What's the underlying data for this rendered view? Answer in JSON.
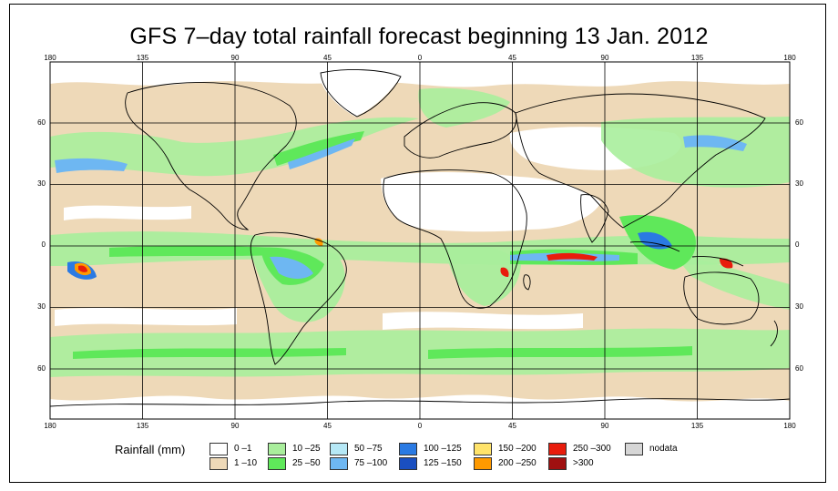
{
  "title": "GFS 7–day total rainfall forecast beginning 13 Jan. 2012",
  "axes": {
    "lon_labels": [
      "180",
      "135",
      "90",
      "45",
      "0",
      "45",
      "90",
      "135",
      "180"
    ],
    "lat_labels": [
      "60",
      "30",
      "0",
      "30",
      "60"
    ]
  },
  "colors": {
    "land_outline": "#000000",
    "grid": "#000000",
    "dry": "#eed9b8",
    "none": "#ffffff"
  },
  "legend": {
    "label": "Rainfall (mm)",
    "items": [
      {
        "label": "0 –1",
        "color": "#ffffff"
      },
      {
        "label": "1 –10",
        "color": "#eed9b8"
      },
      {
        "label": "10 –25",
        "color": "#a9ee9c"
      },
      {
        "label": "25 –50",
        "color": "#5fe85a"
      },
      {
        "label": "50 –75",
        "color": "#b6e8f6"
      },
      {
        "label": "75 –100",
        "color": "#6eb7f2"
      },
      {
        "label": "100 –125",
        "color": "#2a7ae3"
      },
      {
        "label": "125 –150",
        "color": "#1a4fc0"
      },
      {
        "label": "150 –200",
        "color": "#ffe36a"
      },
      {
        "label": "200 –250",
        "color": "#ff9a00"
      },
      {
        "label": "250 –300",
        "color": "#e81c0c"
      },
      {
        "label": ">300",
        "color": "#a01010"
      },
      {
        "label": "nodata",
        "color": "#d6d6d6"
      }
    ]
  }
}
